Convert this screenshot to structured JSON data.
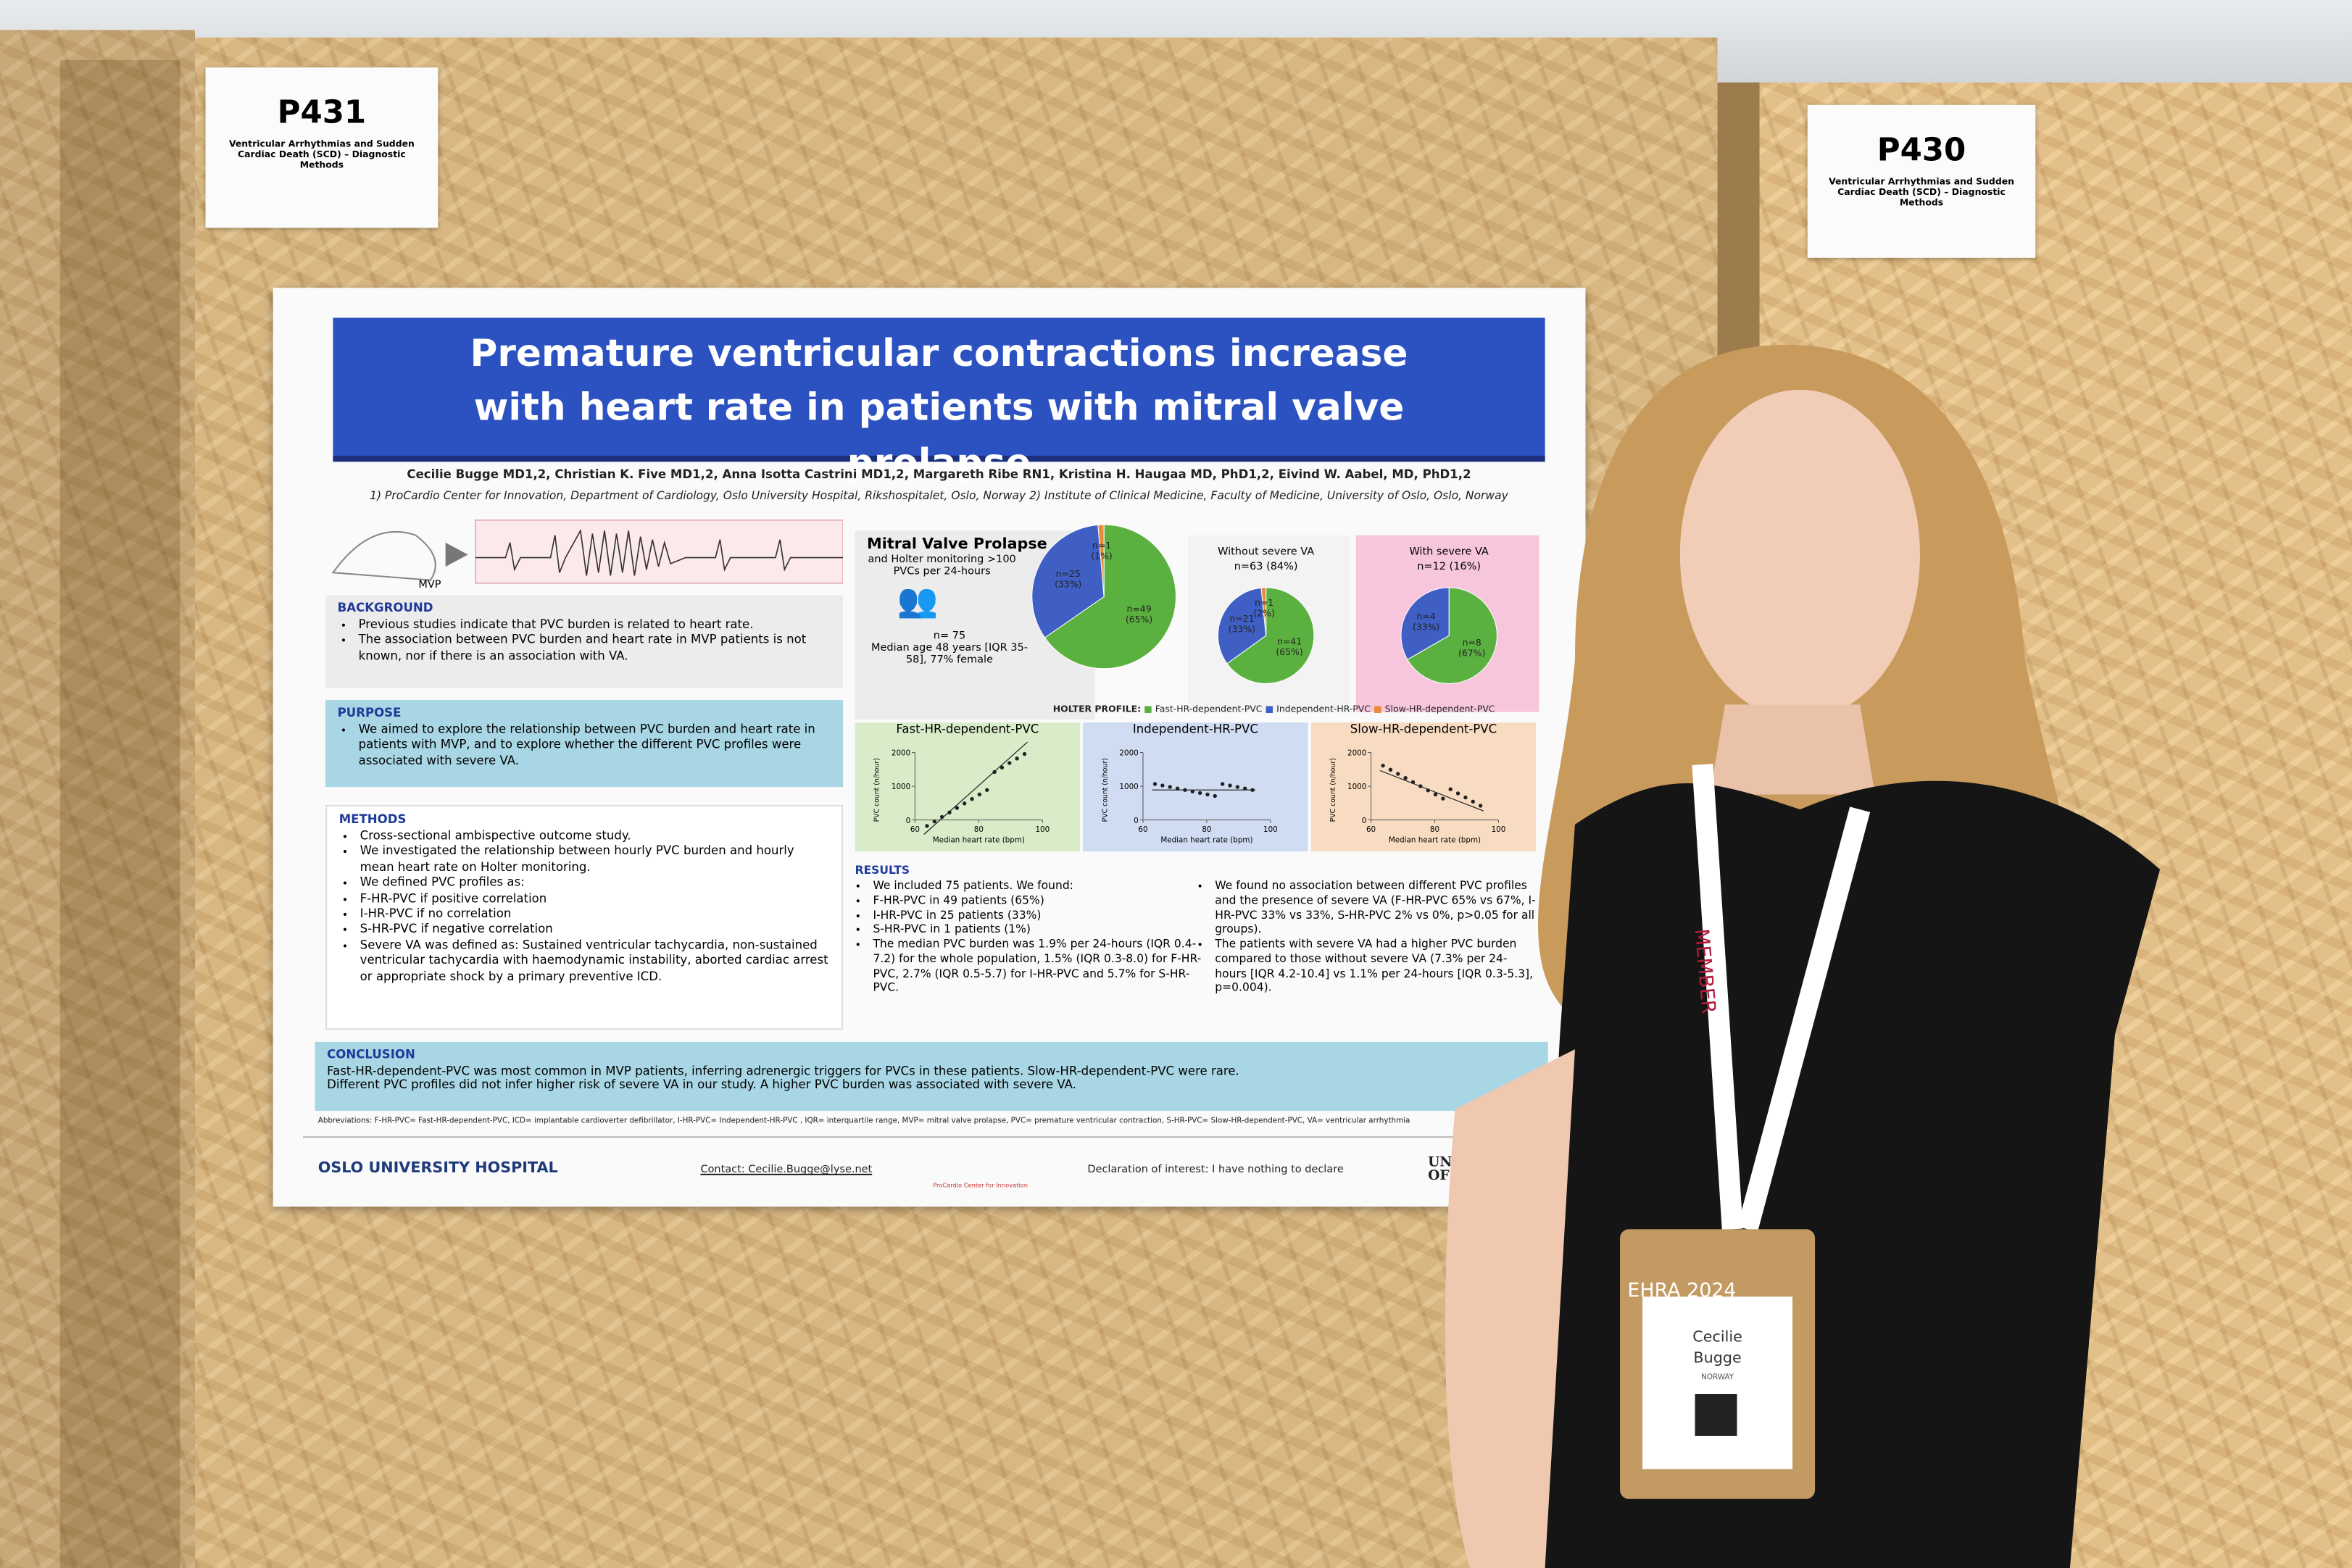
{
  "signs": [
    {
      "code": "P431",
      "topic": "Ventricular Arrhythmias and Sudden Cardiac Death (SCD) – Diagnostic Methods"
    },
    {
      "code": "P430",
      "topic": "Ventricular Arrhythmias and Sudden Cardiac Death (SCD) – Diagnostic Methods"
    }
  ],
  "poster": {
    "title": "Premature ventricular contractions increase with heart rate in patients with mitral valve prolapse",
    "authors": "Cecilie Bugge MD1,2, Christian K. Five MD1,2, Anna Isotta Castrini MD1,2, Margareth Ribe RN1, Kristina H. Haugaa MD, PhD1,2, Eivind W. Aabel, MD, PhD1,2",
    "affiliations": "1) ProCardio Center for Innovation, Department of Cardiology, Oslo University Hospital, Rikshospitalet, Oslo, Norway   2) Institute of Clinical Medicine, Faculty of Medicine, University of Oslo, Oslo, Norway",
    "ecg_label": "MVP",
    "background": {
      "heading": "BACKGROUND",
      "items": [
        "Previous studies indicate that PVC burden is related to heart rate.",
        "The association between PVC burden and heart rate in MVP patients is not known, nor if there is an association with VA."
      ]
    },
    "purpose": {
      "heading": "PURPOSE",
      "items": [
        "We aimed to explore the relationship between PVC burden and heart rate in patients with MVP, and to explore whether the different PVC profiles were associated with severe VA."
      ]
    },
    "methods": {
      "heading": "METHODS",
      "items": [
        "Cross-sectional ambispective outcome study.",
        "We investigated the relationship between hourly PVC burden and hourly mean heart rate on Holter monitoring.",
        "We defined PVC profiles as:",
        "F-HR-PVC if positive correlation",
        "I-HR-PVC if no correlation",
        "S-HR-PVC if negative correlation",
        "Severe VA was defined as: Sustained ventricular tachycardia, non-sustained ventricular tachycardia with haemodynamic instability, aborted cardiac arrest or appropriate shock by a primary preventive ICD."
      ]
    },
    "cohort": {
      "title": "Mitral Valve Prolapse",
      "subtitle": "and Holter monitoring >100 PVCs per 24-hours",
      "n": "n= 75",
      "age": "Median age 48 years [IQR 35-58], 77% female"
    },
    "pies": [
      {
        "title": null,
        "slices": [
          {
            "count": 49,
            "label": "n=49",
            "pct": "(65%)",
            "color": "#5bb140"
          },
          {
            "count": 25,
            "label": "n=25",
            "pct": "(33%)",
            "color": "#3f5fc4"
          },
          {
            "count": 1,
            "label": "n=1",
            "pct": "(1%)",
            "color": "#e98a3c"
          }
        ]
      },
      {
        "title": "Without severe VA",
        "subtitle": "n=63 (84%)",
        "slices": [
          {
            "count": 41,
            "label": "n=41",
            "pct": "(65%)",
            "color": "#5bb140"
          },
          {
            "count": 21,
            "label": "n=21",
            "pct": "(33%)",
            "color": "#3f5fc4"
          },
          {
            "count": 1,
            "label": "n=1",
            "pct": "(2%)",
            "color": "#e98a3c"
          }
        ]
      },
      {
        "title": "With severe VA",
        "subtitle": "n=12 (16%)",
        "slices": [
          {
            "count": 8,
            "label": "n=8",
            "pct": "(67%)",
            "color": "#5bb140"
          },
          {
            "count": 4,
            "label": "n=4",
            "pct": "(33%)",
            "color": "#3f5fc4"
          }
        ]
      }
    ],
    "holter_legend": {
      "title": "HOLTER PROFILE:",
      "items": [
        "Fast-HR-dependent-PVC",
        "Independent-HR-PVC",
        "Slow-HR-dependent-PVC"
      ]
    },
    "scatter_panels": [
      {
        "title": "Fast-HR-dependent-PVC",
        "xlabel": "Median heart rate (bpm)",
        "ylabel": "PVC count (n/hour)",
        "yticks": [
          2000,
          1000,
          0
        ],
        "xticks": [
          60,
          80,
          100
        ]
      },
      {
        "title": "Independent-HR-PVC",
        "xlabel": "Median heart rate (bpm)",
        "ylabel": "PVC count (n/hour)",
        "yticks": [
          2000,
          1000,
          0
        ],
        "xticks": [
          60,
          80,
          100
        ]
      },
      {
        "title": "Slow-HR-dependent-PVC",
        "xlabel": "Median heart rate (bpm)",
        "ylabel": "PVC count (n/hour)",
        "yticks": [
          2000,
          1000,
          0
        ],
        "xticks": [
          60,
          80,
          100
        ]
      }
    ],
    "results": {
      "heading": "RESULTS",
      "col1": [
        "We included 75 patients. We found:",
        "F-HR-PVC in 49 patients (65%)",
        "I-HR-PVC in 25 patients (33%)",
        "S-HR-PVC in 1 patients (1%)",
        "The median PVC burden was 1.9% per 24-hours (IQR 0.4-7.2) for the whole population, 1.5% (IQR 0.3-8.0) for F-HR-PVC, 2.7% (IQR 0.5-5.7) for I-HR-PVC and 5.7% for S-HR-PVC."
      ],
      "col2": [
        "We found no association between different PVC profiles and the presence of severe VA (F-HR-PVC 65% vs 67%, I-HR-PVC 33% vs 33%, S-HR-PVC 2% vs 0%, p>0.05 for all groups).",
        "The patients with severe VA had a higher PVC burden compared to those without severe VA (7.3% per 24-hours [IQR 4.2-10.4] vs 1.1% per 24-hours [IQR 0.3-5.3], p=0.004)."
      ]
    },
    "conclusion": {
      "heading": "CONCLUSION",
      "lines": [
        "Fast-HR-dependent-PVC was most common in MVP patients, inferring adrenergic triggers for PVCs in these patients. Slow-HR-dependent-PVC were rare.",
        "Different PVC profiles did not infer higher risk of severe VA in our study. A higher PVC burden was associated with severe VA."
      ]
    },
    "abbreviations": "Abbreviations: F-HR-PVC= Fast-HR-dependent-PVC, ICD= implantable cardioverter defibrillator, I-HR-PVC= Independent-HR-PVC , IQR= interquartile range, MVP= mitral valve prolapse, PVC= premature ventricular contraction, S-HR-PVC= Slow-HR-dependent-PVC, VA= ventricular arrhythmia",
    "footer": {
      "hospital": "OSLO UNIVERSITY HOSPITAL",
      "contact": "Contact: Cecilie.Bugge@lyse.net",
      "procardio": "ProCardio Center for Innovation",
      "declaration": "Declaration of interest: I have nothing to declare",
      "university": "UNIVERSITY OF OSLO"
    }
  },
  "badge": {
    "lanyard": "MEMBER",
    "event": "EHRA 2024",
    "first_name": "Cecilie",
    "last_name": "Bugge",
    "country": "NORWAY",
    "tier": "EHRA SILVER MEMBER"
  }
}
